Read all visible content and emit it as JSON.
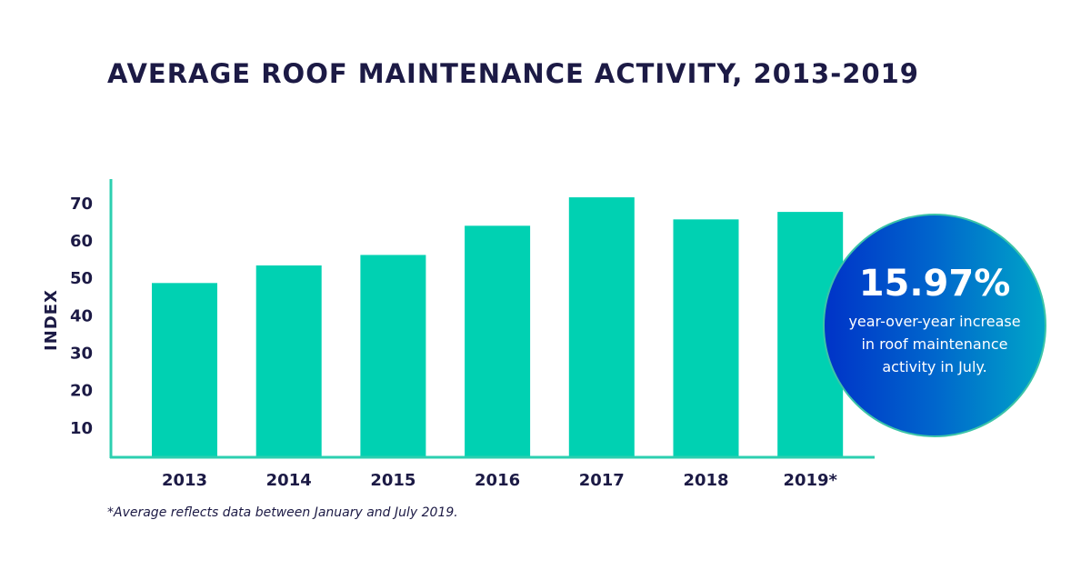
{
  "chart_data": {
    "type": "bar",
    "title": "AVERAGE ROOF MAINTENANCE ACTIVITY, 2013-2019",
    "xlabel": "",
    "ylabel": "INDEX",
    "categories": [
      "2013",
      "2014",
      "2015",
      "2016",
      "2017",
      "2018",
      "2019*"
    ],
    "values": [
      48.5,
      53.2,
      56,
      63.8,
      71.4,
      65.5,
      67.5
    ],
    "yticks": [
      10,
      20,
      30,
      40,
      50,
      60,
      70
    ],
    "ylim": [
      0,
      75
    ],
    "grid": false,
    "bar_color": "#00d1b2",
    "axis_color": "#2ccfb0",
    "footnote": "*Average reflects data between January and July 2019."
  },
  "callout": {
    "value": "15.97%",
    "text": "year-over-year increase in roof maintenance activity in July."
  }
}
